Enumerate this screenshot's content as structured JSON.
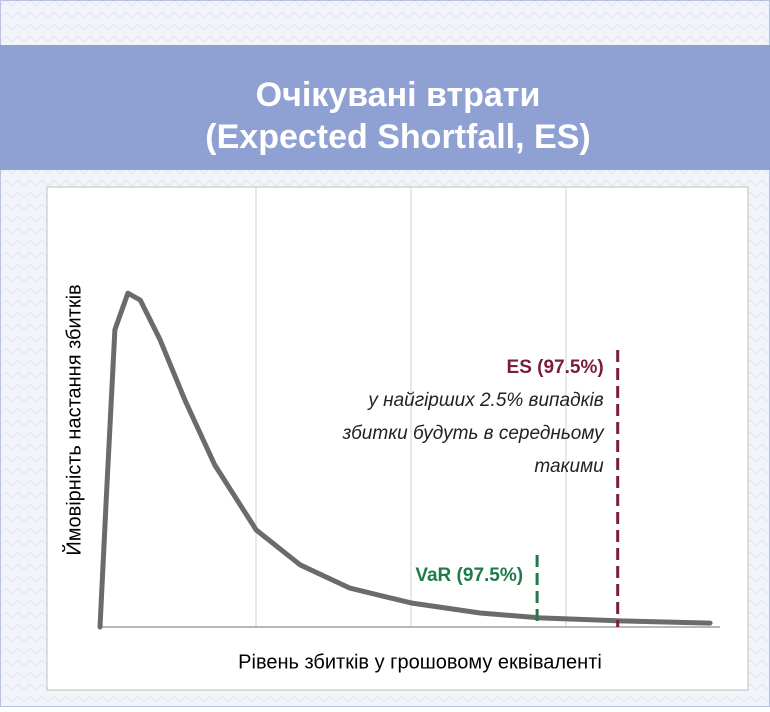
{
  "chart_data": {
    "type": "line",
    "title": [
      "Очікувані втрати",
      "(Expected Shortfall, ES)"
    ],
    "xlabel": "Рівень збитків у грошовому еквіваленті",
    "ylabel": "Ймовірність настання збитків",
    "x": [
      0,
      1,
      2.4,
      4.5,
      6.5,
      9.7,
      13.7,
      18.5,
      25.2,
      32.3,
      40.3,
      50.2,
      61.3,
      71,
      83.9,
      98.4
    ],
    "series": [
      {
        "color": "#6b6b6b",
        "values": [
          0,
          29,
          68,
          76.4,
          74.8,
          65.7,
          51.9,
          37.1,
          22.2,
          14.2,
          8.9,
          5.5,
          3.2,
          2.1,
          1.4,
          0.9
        ]
      }
    ],
    "xlim": [
      0,
      100
    ],
    "ylim": [
      0,
      100
    ],
    "grid": true,
    "markers": [
      {
        "name": "VaR (97.5%)",
        "x": 70.5,
        "color": "#1f7a4b"
      },
      {
        "name": "ES (97.5%)",
        "x": 83.5,
        "color": "#7a1c3e",
        "note": [
          "у найгірших 2.5% випадків",
          "збитки будуть в середньому",
          "такими"
        ]
      }
    ]
  }
}
